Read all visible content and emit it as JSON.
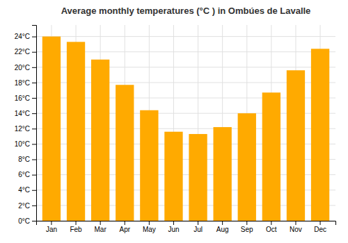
{
  "chart_data": {
    "type": "bar",
    "title": "Average monthly temperatures (°C ) in Ombúes de Lavalle",
    "categories": [
      "Jan",
      "Feb",
      "Mar",
      "Apr",
      "May",
      "Jun",
      "Jul",
      "Aug",
      "Sep",
      "Oct",
      "Nov",
      "Dec"
    ],
    "values": [
      24.0,
      23.3,
      21.0,
      17.7,
      14.4,
      11.6,
      11.3,
      12.2,
      14.0,
      16.7,
      19.6,
      22.4
    ],
    "color": "#FFAA00",
    "ylim": [
      0,
      25.5
    ],
    "yticks": [
      {
        "value": 0,
        "label": "0°C"
      },
      {
        "value": 2,
        "label": "2°C"
      },
      {
        "value": 4,
        "label": "4°C"
      },
      {
        "value": 6,
        "label": "6°C"
      },
      {
        "value": 8,
        "label": "8°C"
      },
      {
        "value": 10,
        "label": "10°C"
      },
      {
        "value": 12,
        "label": "12°C"
      },
      {
        "value": 14,
        "label": "14°C"
      },
      {
        "value": 16,
        "label": "16°C"
      },
      {
        "value": 18,
        "label": "18°C"
      },
      {
        "value": 20,
        "label": "20°C"
      },
      {
        "value": 22,
        "label": "22°C"
      },
      {
        "value": 24,
        "label": "24°C"
      }
    ],
    "grid": true
  }
}
